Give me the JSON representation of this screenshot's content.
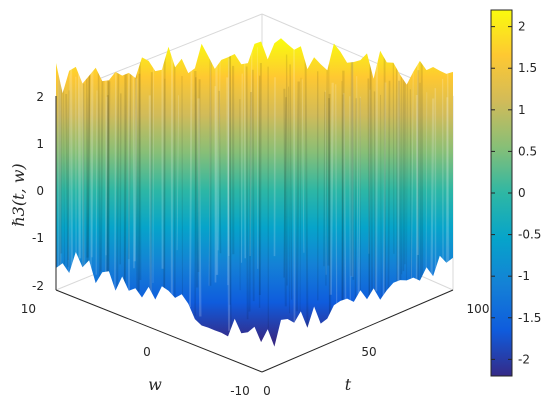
{
  "chart_data": {
    "type": "surface",
    "zlabel": "ℏ3(t, w)",
    "xlabel": "t",
    "ylabel": "w",
    "t_range": [
      0,
      100
    ],
    "w_range": [
      -10,
      10
    ],
    "z_range": [
      -2,
      2
    ],
    "t_ticks": [
      "0",
      "50",
      "100"
    ],
    "w_ticks": [
      "10",
      "0",
      "-10"
    ],
    "z_ticks": [
      "2",
      "1",
      "0",
      "-1",
      "-2"
    ],
    "colorbar": {
      "ticks": [
        "2",
        "1.5",
        "1",
        "0.5",
        "0",
        "-0.5",
        "-1",
        "-1.5",
        "-2"
      ],
      "range": [
        -2.2,
        2.2
      ],
      "colormap": "parula",
      "colors": [
        "#352a87",
        "#0f5cdd",
        "#1481d6",
        "#06a4ca",
        "#2eb7a4",
        "#87bf77",
        "#d1bb59",
        "#fec832",
        "#f9fb0e"
      ]
    },
    "grid": true,
    "surface_description_values": {
      "max": 2.1,
      "min": -2.1
    }
  }
}
